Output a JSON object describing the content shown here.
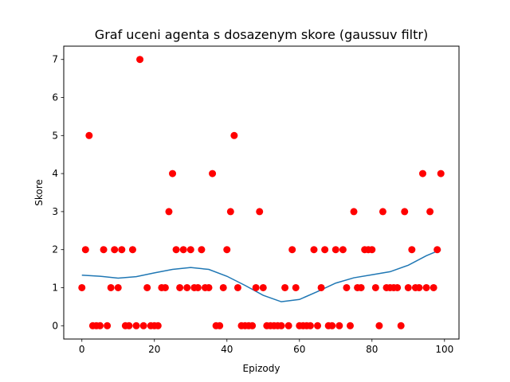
{
  "chart_data": {
    "type": "scatter",
    "title": "Graf uceni agenta s dosazenym skore (gaussuv filtr)",
    "xlabel": "Epizody",
    "ylabel": "Skore",
    "xlim": [
      -5,
      104
    ],
    "ylim": [
      -0.35,
      7.35
    ],
    "xticks": [
      0,
      20,
      40,
      60,
      80,
      100
    ],
    "yticks": [
      0,
      1,
      2,
      3,
      4,
      5,
      6,
      7
    ],
    "grid": false,
    "colors": {
      "points": "#ff0000",
      "smoothed_line": "#1f77b4"
    },
    "series": [
      {
        "kind": "scatter",
        "x": [
          0,
          1,
          2,
          3,
          4,
          5,
          6,
          7,
          8,
          9,
          10,
          11,
          12,
          13,
          14,
          15,
          16,
          17,
          18,
          19,
          20,
          21,
          22,
          23,
          24,
          25,
          26,
          27,
          28,
          29,
          30,
          31,
          32,
          33,
          34,
          35,
          36,
          37,
          38,
          39,
          40,
          41,
          42,
          43,
          44,
          45,
          46,
          47,
          48,
          49,
          50,
          51,
          52,
          53,
          54,
          55,
          56,
          57,
          58,
          59,
          60,
          61,
          62,
          63,
          64,
          65,
          66,
          67,
          68,
          69,
          70,
          71,
          72,
          73,
          74,
          75,
          76,
          77,
          78,
          79,
          80,
          81,
          82,
          83,
          84,
          85,
          86,
          87,
          88,
          89,
          90,
          91,
          92,
          93,
          94,
          95,
          96,
          97,
          98,
          99
        ],
        "values": [
          1,
          2,
          5,
          0,
          0,
          0,
          2,
          0,
          1,
          2,
          1,
          2,
          0,
          0,
          2,
          0,
          7,
          0,
          1,
          0,
          0,
          0,
          1,
          1,
          3,
          4,
          2,
          1,
          2,
          1,
          2,
          1,
          1,
          2,
          1,
          1,
          4,
          0,
          0,
          1,
          2,
          3,
          5,
          1,
          0,
          0,
          0,
          0,
          1,
          3,
          1,
          0,
          0,
          0,
          0,
          0,
          1,
          0,
          2,
          1,
          0,
          0,
          0,
          0,
          2,
          0,
          1,
          2,
          0,
          0,
          2,
          0,
          2,
          1,
          0,
          3,
          1,
          1,
          2,
          2,
          2,
          1,
          0,
          3,
          1,
          1,
          1,
          1,
          0,
          3,
          1,
          2,
          1,
          1,
          4,
          1,
          3,
          1,
          2,
          4
        ]
      },
      {
        "kind": "line",
        "x": [
          0,
          5,
          10,
          15,
          20,
          25,
          30,
          35,
          40,
          45,
          50,
          55,
          60,
          65,
          70,
          75,
          80,
          85,
          90,
          95,
          99
        ],
        "values": [
          1.33,
          1.3,
          1.25,
          1.29,
          1.39,
          1.48,
          1.53,
          1.48,
          1.3,
          1.06,
          0.8,
          0.63,
          0.69,
          0.9,
          1.12,
          1.26,
          1.34,
          1.42,
          1.59,
          1.84,
          2.0
        ]
      }
    ]
  }
}
